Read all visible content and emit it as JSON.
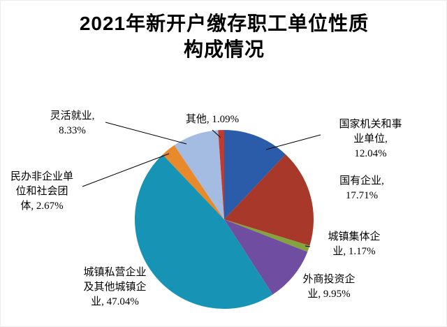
{
  "title": "2021年新开户缴存职工单位性质\n构成情况",
  "chart_data": {
    "type": "pie",
    "title": "2021年新开户缴存职工单位性质构成情况",
    "unit": "%",
    "start_angle_deg": 0,
    "direction": "clockwise",
    "legend": "none",
    "data_labels": "outside-with-leader-lines",
    "series": [
      {
        "label": "国家机关和事业单位",
        "value": 12.04,
        "color": "#2A5CAA"
      },
      {
        "label": "国有企业",
        "value": 17.71,
        "color": "#A8392A"
      },
      {
        "label": "城镇集体企业",
        "value": 1.17,
        "color": "#84A33E"
      },
      {
        "label": "外商投资企业",
        "value": 9.95,
        "color": "#6F4DA0"
      },
      {
        "label": "城镇私营企业及其他城镇企业",
        "value": 47.04,
        "color": "#1793B5"
      },
      {
        "label": "民办非企业单位和社会团体",
        "value": 2.67,
        "color": "#E8892B"
      },
      {
        "label": "灵活就业",
        "value": 8.33,
        "color": "#A4BCE2"
      },
      {
        "label": "其他",
        "value": 1.09,
        "color": "#C23A2F"
      }
    ]
  },
  "callouts": [
    {
      "text": "国家机关和事\n业单位,\n12.04%"
    },
    {
      "text": "国有企业,\n17.71%"
    },
    {
      "text": "城镇集体企\n业, 1.17%"
    },
    {
      "text": "外商投资企\n业, 9.95%"
    },
    {
      "text": "城镇私营企业\n及其他城镇企\n业, 47.04%"
    },
    {
      "text": "民办非企业单\n位和社会团\n体, 2.67%"
    },
    {
      "text": "灵活就业,\n8.33%"
    },
    {
      "text": "其他, 1.09%"
    }
  ]
}
